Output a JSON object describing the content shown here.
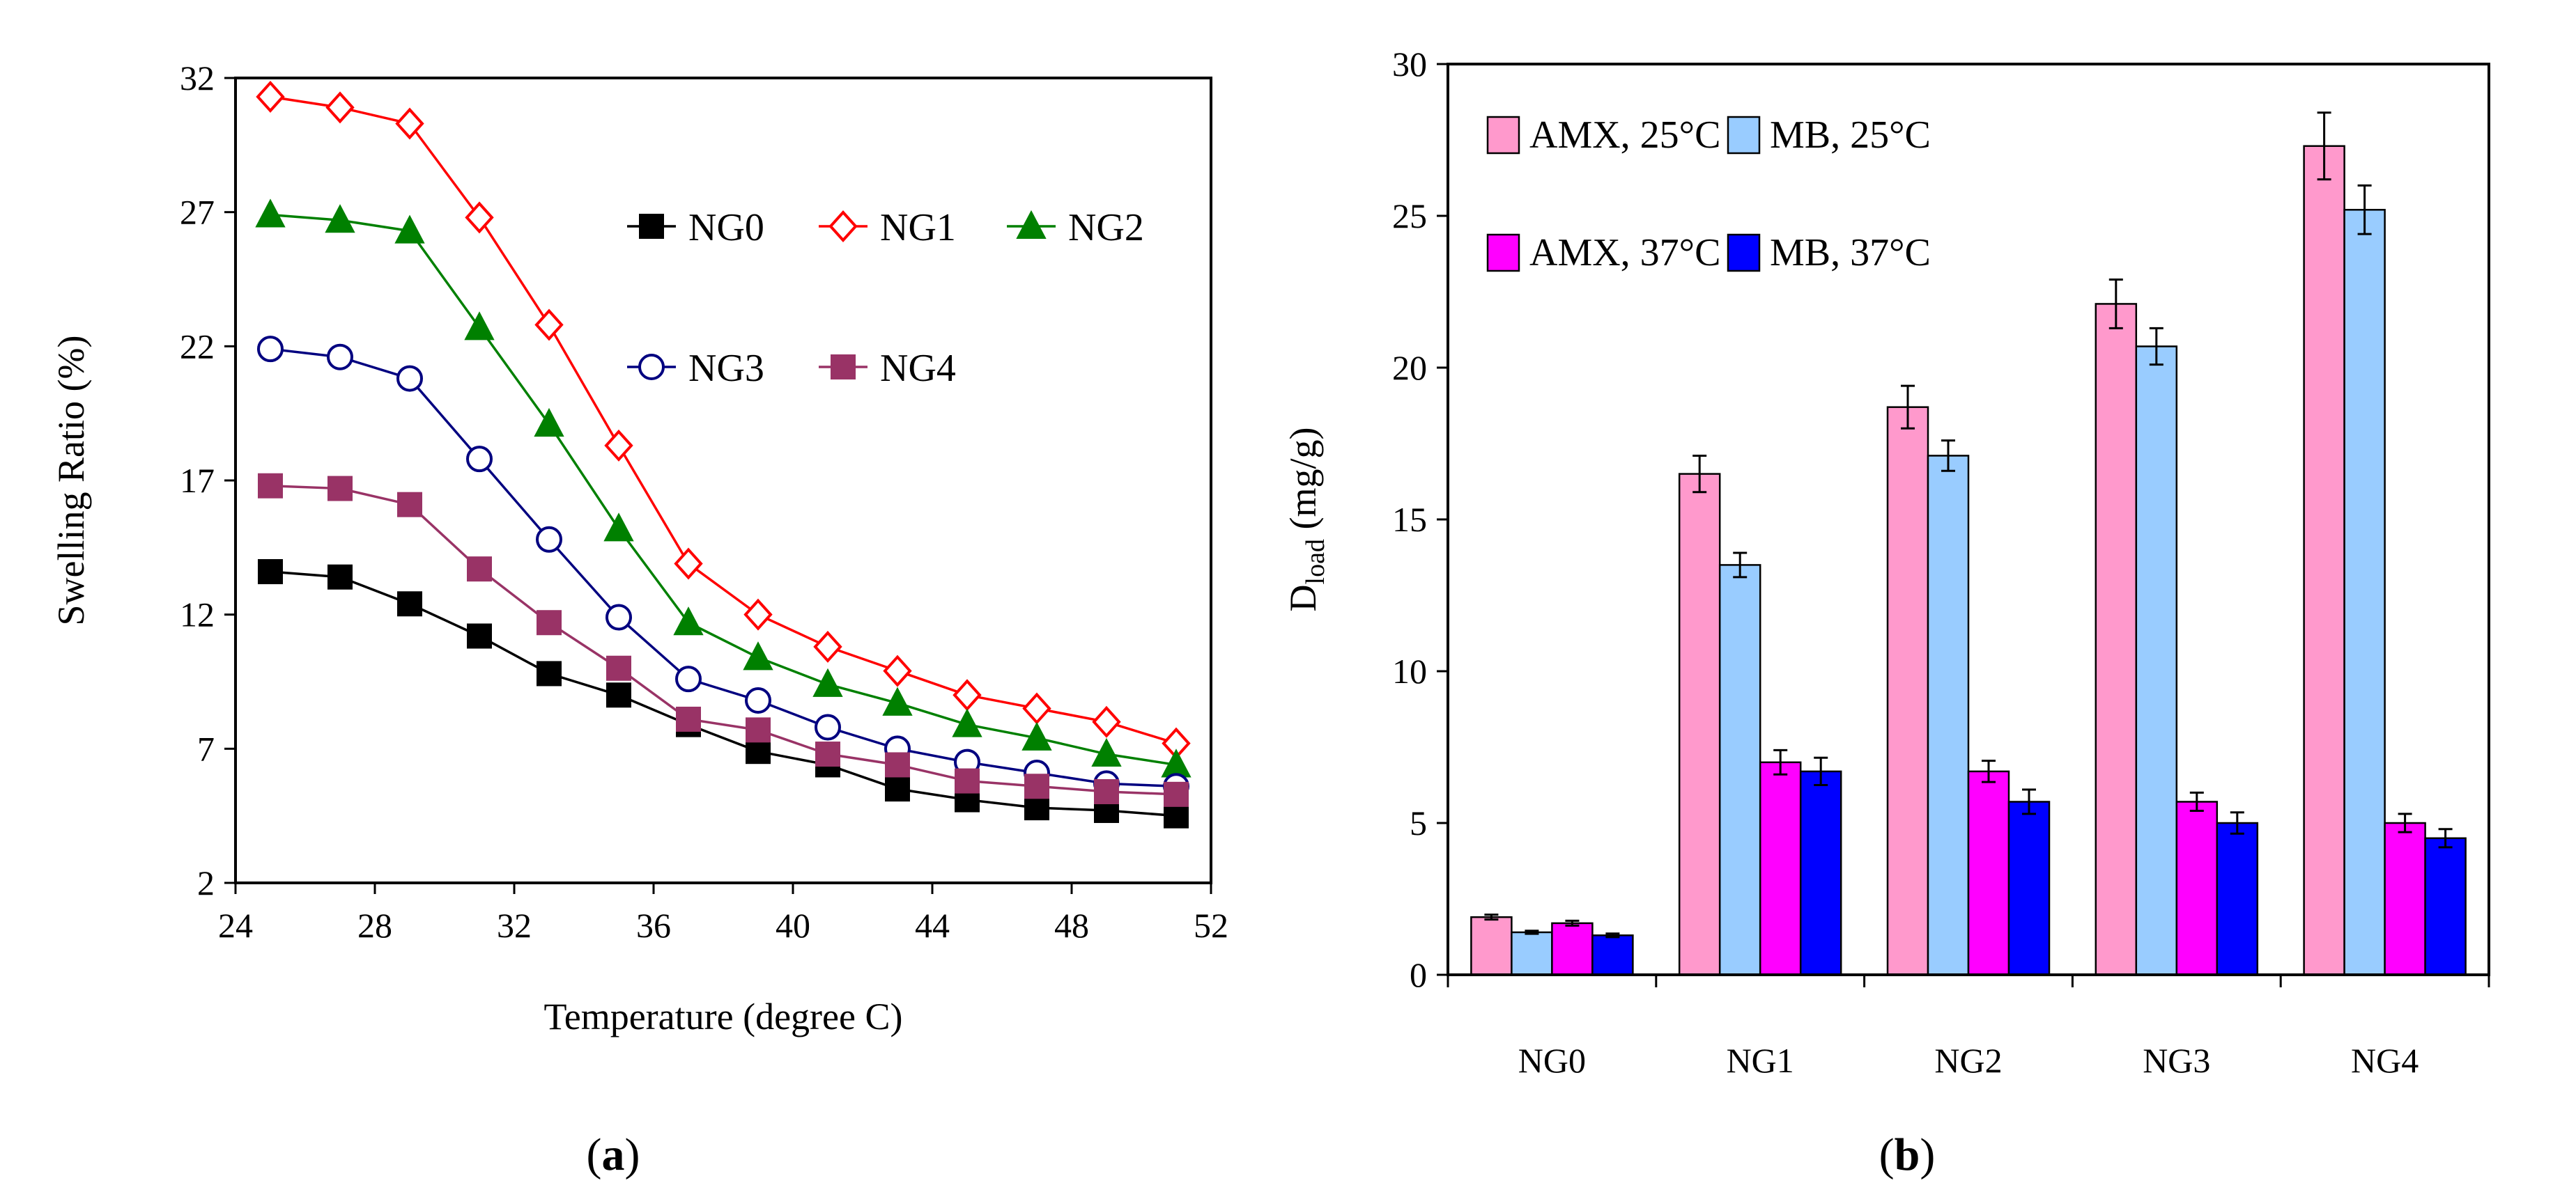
{
  "chart_data": [
    {
      "type": "line",
      "panel_label": "a",
      "xlabel": "Temperature (degree C)",
      "ylabel": "Swelling Ratio (%)",
      "xlim": [
        24,
        52
      ],
      "ylim": [
        2,
        32
      ],
      "xticks": [
        24,
        28,
        32,
        36,
        40,
        44,
        48,
        52
      ],
      "yticks": [
        2,
        7,
        12,
        17,
        22,
        27,
        32
      ],
      "x": [
        25,
        27,
        29,
        31,
        33,
        35,
        37,
        39,
        41,
        43,
        45,
        47,
        49,
        51
      ],
      "legend_position": "top-right",
      "series": [
        {
          "name": "NG0",
          "color": "#000000",
          "marker": "square-filled",
          "values": [
            13.6,
            13.4,
            12.4,
            11.2,
            9.8,
            9.0,
            7.9,
            6.9,
            6.4,
            5.5,
            5.1,
            4.8,
            4.7,
            4.5
          ]
        },
        {
          "name": "NG1",
          "color": "#ff0000",
          "marker": "diamond-open",
          "values": [
            31.3,
            30.9,
            30.3,
            26.8,
            22.8,
            18.3,
            13.9,
            12.0,
            10.8,
            9.9,
            9.0,
            8.5,
            8.0,
            7.2
          ]
        },
        {
          "name": "NG2",
          "color": "#008000",
          "marker": "triangle-filled",
          "values": [
            26.9,
            26.7,
            26.3,
            22.7,
            19.1,
            15.2,
            11.7,
            10.4,
            9.4,
            8.7,
            7.9,
            7.4,
            6.8,
            6.4
          ]
        },
        {
          "name": "NG3",
          "color": "#000080",
          "marker": "circle-open",
          "values": [
            21.9,
            21.6,
            20.8,
            17.8,
            14.8,
            11.9,
            9.6,
            8.8,
            7.8,
            7.0,
            6.5,
            6.1,
            5.7,
            5.6
          ]
        },
        {
          "name": "NG4",
          "color": "#993366",
          "marker": "square-filled",
          "values": [
            16.8,
            16.7,
            16.1,
            13.7,
            11.7,
            10.0,
            8.1,
            7.7,
            6.8,
            6.4,
            5.8,
            5.6,
            5.4,
            5.3
          ]
        }
      ]
    },
    {
      "type": "bar",
      "panel_label": "b",
      "xlabel": "",
      "ylabel_main": "D",
      "ylabel_sub": "load",
      "ylabel_rest": " (mg/g)",
      "ylim": [
        0,
        30
      ],
      "yticks": [
        0,
        5,
        10,
        15,
        20,
        25,
        30
      ],
      "categories": [
        "NG0",
        "NG1",
        "NG2",
        "NG3",
        "NG4"
      ],
      "legend_position": "top-left",
      "series": [
        {
          "name": "AMX, 25°C",
          "color": "#ff99cc",
          "values": [
            1.9,
            16.5,
            18.7,
            22.1,
            27.3
          ],
          "errors": [
            0.08,
            0.6,
            0.7,
            0.8,
            1.1
          ]
        },
        {
          "name": "MB, 25°C",
          "color": "#99ccff",
          "values": [
            1.4,
            13.5,
            17.1,
            20.7,
            25.2
          ],
          "errors": [
            0.05,
            0.4,
            0.5,
            0.6,
            0.8
          ]
        },
        {
          "name": "AMX, 37°C",
          "color": "#ff00ff",
          "values": [
            1.7,
            7.0,
            6.7,
            5.7,
            5.0
          ],
          "errors": [
            0.08,
            0.4,
            0.35,
            0.3,
            0.3
          ]
        },
        {
          "name": "MB, 37°C",
          "color": "#0000ff",
          "values": [
            1.3,
            6.7,
            5.7,
            5.0,
            4.5
          ],
          "errors": [
            0.06,
            0.45,
            0.4,
            0.35,
            0.3
          ]
        }
      ]
    }
  ]
}
